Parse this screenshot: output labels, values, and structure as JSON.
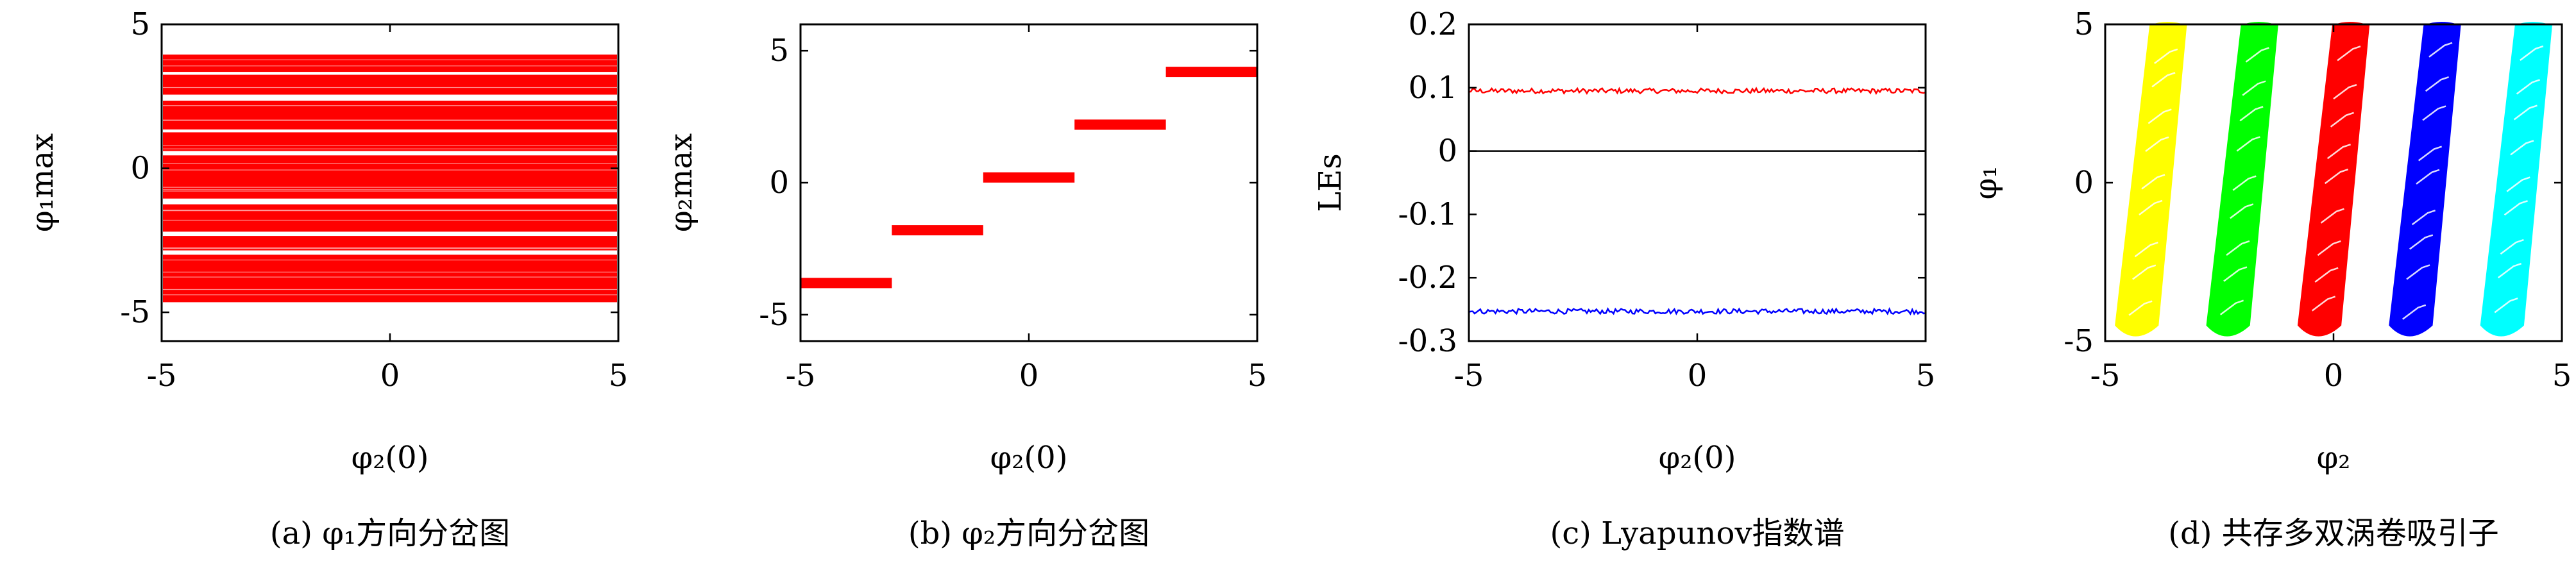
{
  "chart_data": [
    {
      "id": "a",
      "type": "scatter",
      "caption": "(a) φ₁方向分岔图",
      "xlabel": "φ₂(0)",
      "ylabel": "φ₁max",
      "xlim": [
        -5,
        5
      ],
      "ylim": [
        -6,
        5
      ],
      "xticks": [
        "-5",
        "0",
        "5"
      ],
      "yticks": [
        "-5",
        "0",
        "5"
      ],
      "xtick_values": [
        -5,
        0,
        5
      ],
      "ytick_values": [
        -5,
        0,
        5
      ],
      "color": "#ff0000",
      "bands": [
        {
          "y0": 3.35,
          "y1": 3.95
        },
        {
          "y0": 2.55,
          "y1": 3.25
        },
        {
          "y0": 1.35,
          "y1": 2.35
        },
        {
          "y0": 0.6,
          "y1": 1.25
        },
        {
          "y0": -1.05,
          "y1": 0.45
        },
        {
          "y0": -2.2,
          "y1": -1.25
        },
        {
          "y0": -2.85,
          "y1": -2.35
        },
        {
          "y0": -4.65,
          "y1": -3.0
        }
      ]
    },
    {
      "id": "b",
      "type": "line",
      "caption": "(b) φ₂方向分岔图",
      "xlabel": "φ₂(0)",
      "ylabel": "φ₂max",
      "xlim": [
        -5,
        5
      ],
      "ylim": [
        -6,
        6
      ],
      "xticks": [
        "-5",
        "0",
        "5"
      ],
      "yticks": [
        "-5",
        "0",
        "5"
      ],
      "xtick_values": [
        -5,
        0,
        5
      ],
      "ytick_values": [
        -5,
        0,
        5
      ],
      "color": "#ff0000",
      "segments": [
        {
          "x0": -5.0,
          "x1": -3.0,
          "y": -3.8
        },
        {
          "x0": -3.0,
          "x1": -1.0,
          "y": -1.8
        },
        {
          "x0": -1.0,
          "x1": 1.0,
          "y": 0.2
        },
        {
          "x0": 1.0,
          "x1": 3.0,
          "y": 2.2
        },
        {
          "x0": 3.0,
          "x1": 5.0,
          "y": 4.2
        }
      ]
    },
    {
      "id": "c",
      "type": "line",
      "caption": "(c) Lyapunov指数谱",
      "xlabel": "φ₂(0)",
      "ylabel": "LEs",
      "xlim": [
        -5,
        5
      ],
      "ylim": [
        -0.3,
        0.2
      ],
      "xticks": [
        "-5",
        "0",
        "5"
      ],
      "yticks": [
        "0.2",
        "0.1",
        "0",
        "-0.1",
        "-0.2",
        "-0.3"
      ],
      "xtick_values": [
        -5,
        0,
        5
      ],
      "ytick_values": [
        0.2,
        0.1,
        0,
        -0.1,
        -0.2,
        -0.3
      ],
      "series": [
        {
          "color": "#ff0000",
          "mean": 0.095,
          "noise": 0.004
        },
        {
          "color": "#000000",
          "mean": 0.0,
          "noise": 0.0
        },
        {
          "color": "#0000ff",
          "mean": -0.253,
          "noise": 0.004
        }
      ]
    },
    {
      "id": "d",
      "type": "scatter",
      "caption": "(d) 共存多双涡卷吸引子",
      "xlabel": "φ₂",
      "ylabel": "φ₁",
      "xlim": [
        -5,
        5
      ],
      "ylim": [
        -5,
        5
      ],
      "xticks": [
        "-5",
        "0",
        "5"
      ],
      "yticks": [
        "-5",
        "0",
        "5"
      ],
      "xtick_values": [
        -5,
        0,
        5
      ],
      "ytick_values": [
        -5,
        0,
        5
      ],
      "attractors": [
        {
          "center": -4.0,
          "color": "#ffff00"
        },
        {
          "center": -2.0,
          "color": "#00ff00"
        },
        {
          "center": 0.0,
          "color": "#ff0000"
        },
        {
          "center": 2.0,
          "color": "#0000ff"
        },
        {
          "center": 4.0,
          "color": "#00ffff"
        }
      ]
    }
  ]
}
